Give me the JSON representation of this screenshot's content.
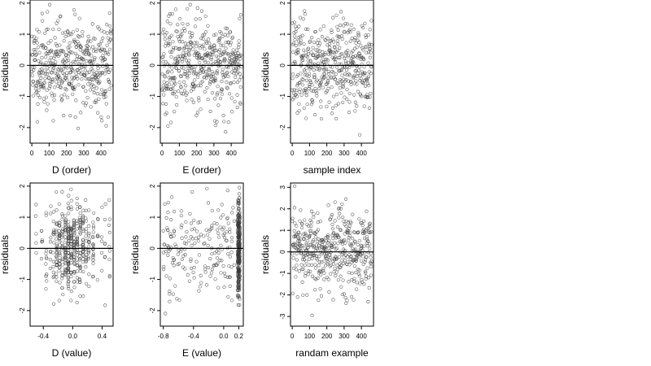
{
  "chart_data": [
    {
      "type": "scatter",
      "xlabel": "D (order)",
      "ylabel": "residuals",
      "xlim": [
        -10,
        470
      ],
      "ylim": [
        -2.5,
        2.1
      ],
      "xticks": [
        0,
        100,
        200,
        300,
        400
      ],
      "yticks": [
        -2,
        -1,
        0,
        1,
        2
      ],
      "hline": 0,
      "series": [
        {
          "gen": "index",
          "n": 460,
          "mean": 0,
          "sd": 0.72,
          "seed": 11,
          "ymin": -2.4,
          "ymax": 1.95
        }
      ]
    },
    {
      "type": "scatter",
      "xlabel": "E (order)",
      "ylabel": "residuals",
      "xlim": [
        -10,
        470
      ],
      "ylim": [
        -2.5,
        2.1
      ],
      "xticks": [
        0,
        100,
        200,
        300,
        400
      ],
      "yticks": [
        -2,
        -1,
        0,
        1,
        2
      ],
      "hline": 0,
      "series": [
        {
          "gen": "index",
          "n": 460,
          "mean": 0,
          "sd": 0.72,
          "seed": 23,
          "ymin": -2.4,
          "ymax": 1.95
        }
      ]
    },
    {
      "type": "scatter",
      "xlabel": "sample index",
      "ylabel": "residuals",
      "xlim": [
        -10,
        470
      ],
      "ylim": [
        -2.5,
        2.1
      ],
      "xticks": [
        0,
        100,
        200,
        300,
        400
      ],
      "yticks": [
        -2,
        -1,
        0,
        1,
        2
      ],
      "hline": 0,
      "series": [
        {
          "gen": "index",
          "n": 460,
          "mean": 0,
          "sd": 0.72,
          "seed": 37,
          "ymin": -2.4,
          "ymax": 1.95
        }
      ]
    },
    {
      "type": "scatter",
      "xlabel": "D (value)",
      "ylabel": "residuals",
      "xlim": [
        -0.58,
        0.55
      ],
      "ylim": [
        -2.5,
        2.1
      ],
      "xticks": [
        -0.4,
        0.0,
        0.4
      ],
      "xtick_labels": [
        "-0.4",
        "0.0",
        "0.4"
      ],
      "yticks": [
        -2,
        -1,
        0,
        1,
        2
      ],
      "hline": 0,
      "series": [
        {
          "gen": "discrete",
          "xs": [
            -0.5,
            -0.42,
            -0.36,
            -0.3,
            -0.26,
            -0.22,
            -0.18,
            -0.14,
            -0.1,
            -0.06,
            -0.02,
            0.02,
            0.06,
            0.1,
            0.14,
            0.18,
            0.22,
            0.28,
            0.34,
            0.4,
            0.44,
            0.5
          ],
          "weights": [
            1,
            1,
            2,
            3,
            4,
            5,
            6,
            6,
            7,
            7,
            7,
            7,
            6,
            6,
            6,
            5,
            4,
            3,
            2,
            2,
            1,
            1
          ],
          "jitter": 0.006,
          "n": 460,
          "mean": 0,
          "sd": 0.72,
          "seed": 51,
          "ymin": -2.4,
          "ymax": 1.95
        }
      ]
    },
    {
      "type": "scatter",
      "xlabel": "E (value)",
      "ylabel": "residuals",
      "xlim": [
        -0.84,
        0.26
      ],
      "ylim": [
        -2.5,
        2.1
      ],
      "xticks": [
        -0.8,
        -0.4,
        0.0,
        0.2
      ],
      "xtick_labels": [
        "-0.8",
        "-0.4",
        "0.0",
        "0.2"
      ],
      "yticks": [
        -2,
        -1,
        0,
        1,
        2
      ],
      "hline": 0,
      "series": [
        {
          "gen": "uniform",
          "x0": -0.8,
          "x1": 0.15,
          "n": 190,
          "mean": 0,
          "sd": 0.72,
          "seed": 67,
          "ymin": -2.4,
          "ymax": 1.95
        },
        {
          "gen": "uniform",
          "x0": 0.185,
          "x1": 0.215,
          "n": 270,
          "mean": 0,
          "sd": 0.75,
          "seed": 79,
          "ymin": -2.4,
          "ymax": 1.95
        }
      ]
    },
    {
      "type": "scatter",
      "xlabel": "randam example",
      "ylabel": "residuals",
      "xlim": [
        -10,
        470
      ],
      "ylim": [
        -3.45,
        3.2
      ],
      "xticks": [
        0,
        100,
        200,
        300,
        400
      ],
      "yticks": [
        -3,
        -2,
        -1,
        0,
        1,
        2,
        3
      ],
      "hline": 0,
      "series": [
        {
          "gen": "index",
          "n": 460,
          "mean": 0,
          "sd": 1.0,
          "seed": 97,
          "ymin": -3.3,
          "ymax": 3.05
        }
      ]
    }
  ]
}
